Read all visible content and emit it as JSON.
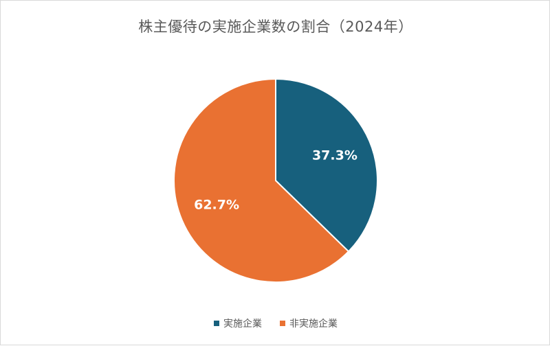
{
  "chart_data": {
    "type": "pie",
    "title": "株主優待の実施企業数の割合（2024年）",
    "categories": [
      "実施企業",
      "非実施企業"
    ],
    "values": [
      37.3,
      62.7
    ],
    "labels": [
      "37.3%",
      "62.7%"
    ],
    "colors": [
      "#17607d",
      "#e97132"
    ],
    "start_angle_deg": 0,
    "direction": "clockwise",
    "legend_position": "bottom"
  }
}
